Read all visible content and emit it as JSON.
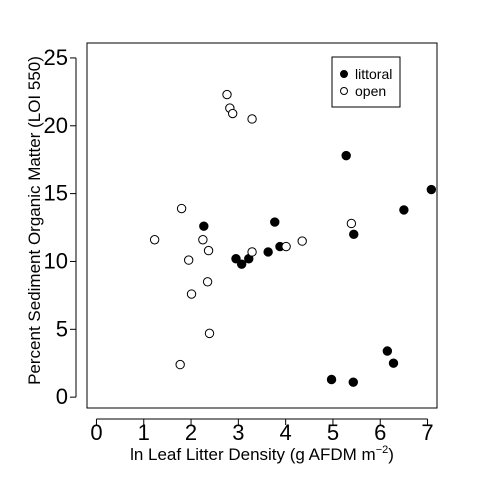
{
  "chart_data": {
    "type": "scatter",
    "xlabel": "ln Leaf Litter Density (g AFDM m",
    "xlabel_sup": "−2",
    "xlabel_end": ")",
    "ylabel": "Percent Sediment Organic Matter (LOI 550)",
    "xlim": [
      -0.2,
      7.2
    ],
    "ylim": [
      -0.8,
      26.1
    ],
    "xticks": [
      0,
      1,
      2,
      3,
      4,
      5,
      6,
      7
    ],
    "xtick_labels": [
      "0",
      "1",
      "2",
      "3",
      "4",
      "5",
      "6",
      "7"
    ],
    "yticks": [
      0,
      5,
      10,
      15,
      20,
      25
    ],
    "ytick_labels": [
      "0",
      "5",
      "10",
      "15",
      "20",
      "25"
    ],
    "grid": false,
    "legend_position": "top-right",
    "series": [
      {
        "name": "littoral",
        "marker": "filled-circle",
        "color": "#000000",
        "x": [
          2.27,
          2.95,
          3.07,
          3.22,
          3.63,
          3.77,
          3.88,
          4.97,
          5.28,
          5.44,
          5.43,
          6.15,
          6.28,
          6.5,
          7.08
        ],
        "y": [
          12.6,
          10.2,
          9.8,
          10.2,
          10.7,
          12.9,
          11.1,
          1.3,
          17.8,
          12.0,
          1.1,
          3.4,
          2.5,
          13.8,
          15.3
        ]
      },
      {
        "name": "open",
        "marker": "open-circle",
        "color": "#000000",
        "x": [
          1.23,
          1.77,
          1.8,
          1.95,
          2.01,
          2.25,
          2.35,
          2.37,
          2.39,
          2.76,
          2.82,
          2.88,
          3.29,
          3.29,
          4.01,
          4.35,
          5.39
        ],
        "y": [
          11.6,
          2.4,
          13.9,
          10.1,
          7.6,
          11.6,
          8.5,
          10.8,
          4.7,
          22.3,
          21.3,
          20.9,
          20.5,
          10.7,
          11.1,
          11.5,
          12.8
        ]
      }
    ]
  }
}
